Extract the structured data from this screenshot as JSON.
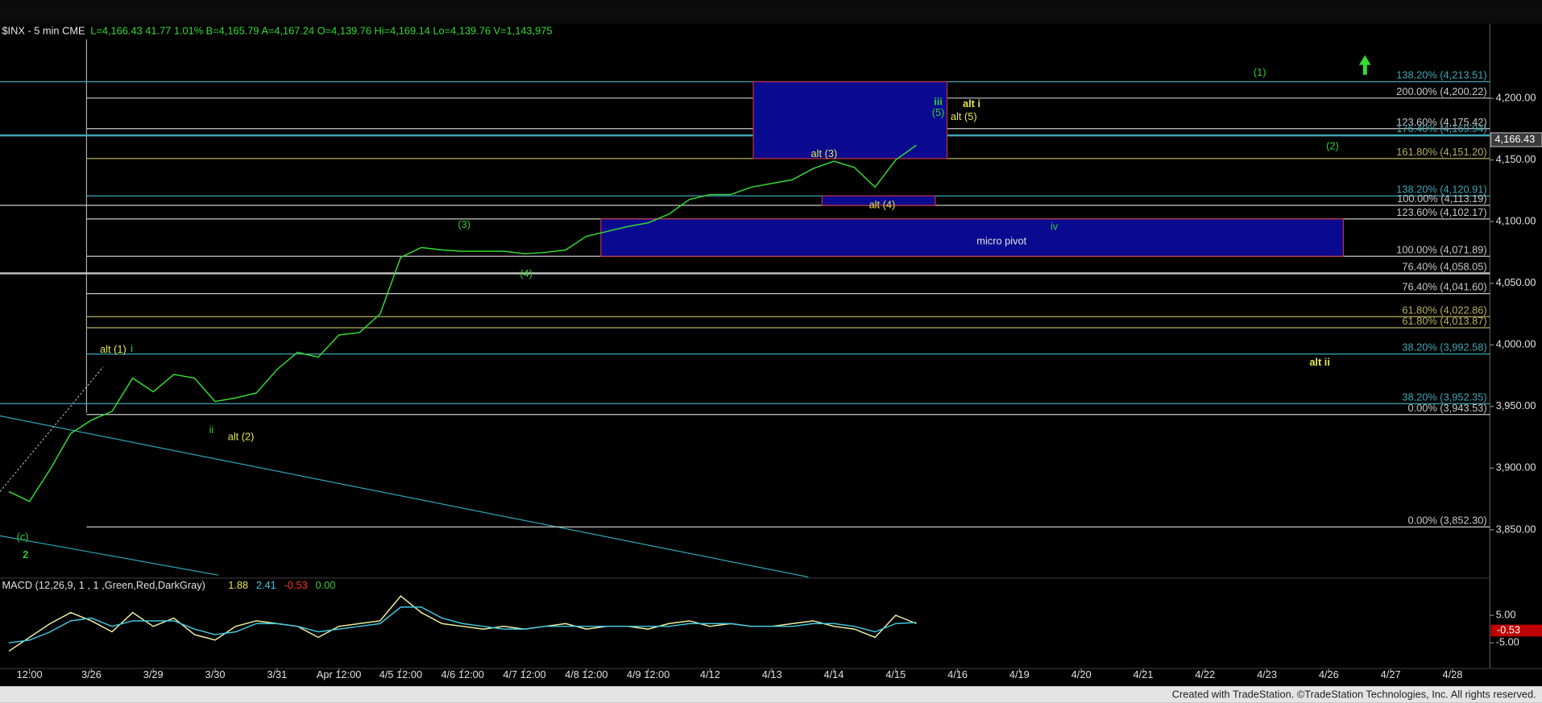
{
  "chart_data": [
    {
      "type": "line",
      "title": "$INX - 5 min  CME",
      "quote": "L=4,166.43 41.77 1.01% B=4,165.79 A=4,167.24 O=4,139.76 Hi=4,169.14 Lo=4,139.76 V=1,143,975",
      "categories": [
        null,
        "12:00",
        null,
        null,
        "3/26",
        null,
        null,
        "3/29",
        null,
        null,
        "3/30",
        null,
        null,
        "3/31",
        null,
        null,
        "Apr 12:00",
        null,
        null,
        "4/5 12:00",
        null,
        null,
        "4/6 12:00",
        null,
        null,
        "4/7 12:00",
        null,
        null,
        "4/8 12:00",
        null,
        null,
        "4/9 12:00",
        null,
        null,
        "4/12",
        null,
        null,
        "4/13",
        null,
        null,
        "4/14",
        null,
        null,
        "4/15",
        null,
        null,
        "4/16",
        null,
        null,
        "4/19",
        null,
        null,
        "4/20",
        null,
        null,
        "4/21",
        null,
        null,
        "4/22",
        null,
        null,
        "4/23",
        null,
        null,
        "4/26",
        null,
        null,
        "4/27",
        null,
        null,
        "4/28"
      ],
      "series": [
        {
          "name": "$INX",
          "color": "#33dd33",
          "values": [
            3881,
            3873,
            3899,
            3928,
            3939,
            3946,
            3973,
            3962,
            3976,
            3973,
            3954,
            3957,
            3961,
            3980,
            3994,
            3990,
            4008,
            4010,
            4025,
            4071,
            4079,
            4077,
            4076,
            4076,
            4076,
            4074,
            4075,
            4077,
            4088,
            4092,
            4096,
            4099,
            4106,
            4118,
            4122,
            4122,
            4128,
            4131,
            4134,
            4143,
            4149,
            4144,
            4128,
            4150,
            4162,
            null,
            null,
            null,
            null,
            null,
            null,
            null,
            null,
            null,
            null,
            null,
            null,
            null,
            null,
            null,
            null,
            null,
            null,
            null,
            null,
            null,
            null,
            null,
            null,
            null,
            null
          ]
        }
      ],
      "ylim": [
        3813.2,
        4255.8
      ],
      "yticks": [
        {
          "value": 4200,
          "label": "4,200.00"
        },
        {
          "value": 4150,
          "label": "4,150.00"
        },
        {
          "value": 4100,
          "label": "4,100.00"
        },
        {
          "value": 4050,
          "label": "4,050.00"
        },
        {
          "value": 4000,
          "label": "4,000.00"
        },
        {
          "value": 3950,
          "label": "3,950.00"
        },
        {
          "value": 3900,
          "label": "3,900.00"
        },
        {
          "value": 3850,
          "label": "3,850.00"
        }
      ],
      "last": {
        "value": 4166.43,
        "label": "4,166.43"
      },
      "levels": [
        {
          "label": "138.20% (4,213.51)",
          "value": 4213.51,
          "color": "#3fa7b5"
        },
        {
          "label": "200.00% (4,200.22)",
          "value": 4200.22,
          "color": "#c8c8c8"
        },
        {
          "label": "123.60% (4,175.42)",
          "value": 4175.42,
          "color": "#c8c8c8"
        },
        {
          "label": "176.40% (4,169.94)",
          "value": 4169.94,
          "color": "#3fa7b5"
        },
        {
          "label": "161.80% (4,151.20)",
          "value": 4151.2,
          "color": "#b5b060"
        },
        {
          "label": "138.20% (4,120.91)",
          "value": 4120.91,
          "color": "#3fa7b5"
        },
        {
          "label": "100.00% (4,113.19)",
          "value": 4113.19,
          "color": "#c8c8c8"
        },
        {
          "label": "123.60% (4,102.17)",
          "value": 4102.17,
          "color": "#c8c8c8"
        },
        {
          "label": "100.00% (4,071.89)",
          "value": 4071.89,
          "color": "#c8c8c8"
        },
        {
          "label": "76.40% (4,058.05)",
          "value": 4058.05,
          "color": "#c8c8c8"
        },
        {
          "label": "76.40% (4,041.60)",
          "value": 4041.6,
          "color": "#c8c8c8"
        },
        {
          "label": "61.80% (4,022.86)",
          "value": 4022.86,
          "color": "#b5b060"
        },
        {
          "label": "61.80% (4,013.87)",
          "value": 4013.87,
          "color": "#b5b060"
        },
        {
          "label": "38.20% (3,992.58)",
          "value": 3992.58,
          "color": "#3fa7b5"
        },
        {
          "label": "38.20% (3,952.35)",
          "value": 3952.35,
          "color": "#3fa7b5"
        },
        {
          "label": "0.00% (3,943.53)",
          "value": 3943.53,
          "color": "#c8c8c8"
        },
        {
          "label": "0.00% (3,852.30)",
          "value": 3852.3,
          "color": "#c8c8c8"
        }
      ],
      "zones": [
        {
          "high": 4213.51,
          "low": 4151.2
        },
        {
          "high": 4120.91,
          "low": 4113.19
        },
        {
          "label": "micro pivot",
          "high": 4102.17,
          "low": 4071.89
        }
      ],
      "annotations": [
        {
          "text": "alt (1)",
          "color": "#e6e64c"
        },
        {
          "text": "i",
          "color": "#33cc33"
        },
        {
          "text": "ii",
          "color": "#33cc33"
        },
        {
          "text": "alt (2)",
          "color": "#e6e64c"
        },
        {
          "text": "(c)",
          "color": "#33cc33"
        },
        {
          "text": "2",
          "color": "#33cc33"
        },
        {
          "text": "(3)",
          "color": "#33cc33"
        },
        {
          "text": "(4)",
          "color": "#33cc33"
        },
        {
          "text": "alt (3)",
          "color": "#e6e64c"
        },
        {
          "text": "alt (4)",
          "color": "#e6e64c"
        },
        {
          "text": "iii",
          "color": "#33cc33"
        },
        {
          "text": "(5)",
          "color": "#33cc33"
        },
        {
          "text": "alt i",
          "color": "#e6e64c"
        },
        {
          "text": "alt (5)",
          "color": "#e6e64c"
        },
        {
          "text": "iv",
          "color": "#33cc33"
        },
        {
          "text": "(1)",
          "color": "#33cc33"
        },
        {
          "text": "(2)",
          "color": "#33cc33"
        },
        {
          "text": "alt ii",
          "color": "#e6e64c"
        }
      ]
    },
    {
      "type": "line",
      "title": "MACD (12,26,9, 1 , 1 ,Green,Red,DarkGray)",
      "readout": [
        {
          "text": "1.88",
          "color": "#e6e64c"
        },
        {
          "text": "2.41",
          "color": "#40c8e0"
        },
        {
          "text": "-0.53",
          "color": "#ff3030"
        },
        {
          "text": "0.00",
          "color": "#33cc33"
        }
      ],
      "series": [
        {
          "name": "MACD",
          "color": "#f0f0a0",
          "values": [
            -8,
            -3,
            2,
            6,
            3,
            -1,
            6,
            1,
            4,
            -2,
            -4,
            1,
            3,
            2,
            1,
            -3,
            1,
            2,
            3,
            12,
            6,
            2,
            1,
            0,
            1,
            0,
            1,
            2,
            0,
            1,
            1,
            0,
            2,
            3,
            1,
            2,
            1,
            1,
            2,
            3,
            1,
            0,
            -3,
            5,
            2,
            null,
            null,
            null,
            null,
            null,
            null,
            null,
            null,
            null,
            null,
            null,
            null,
            null,
            null,
            null,
            null,
            null,
            null,
            null,
            null,
            null,
            null,
            null,
            null,
            null,
            null
          ]
        },
        {
          "name": "Signal",
          "color": "#40c8e0",
          "values": [
            -5,
            -4,
            -1,
            3,
            4,
            1,
            3,
            3,
            3,
            0,
            -2,
            -1,
            2,
            2,
            1,
            -1,
            0,
            1,
            2,
            8,
            8,
            4,
            2,
            1,
            0,
            0,
            1,
            1,
            1,
            1,
            1,
            1,
            1,
            2,
            2,
            2,
            1,
            1,
            1,
            2,
            2,
            1,
            -1,
            2,
            2.4,
            null,
            null,
            null,
            null,
            null,
            null,
            null,
            null,
            null,
            null,
            null,
            null,
            null,
            null,
            null,
            null,
            null,
            null,
            null,
            null,
            null,
            null,
            null,
            null,
            null,
            null
          ]
        }
      ],
      "ylim": [
        -13.6,
        17.1
      ],
      "yticks": [
        {
          "value": 5,
          "label": "5.00"
        },
        {
          "value": -5,
          "label": "-5.00"
        }
      ],
      "last": {
        "value": -0.53,
        "label": "-0.53"
      }
    }
  ],
  "footer": "Created with TradeStation. ©TradeStation Technologies, Inc. All rights reserved."
}
